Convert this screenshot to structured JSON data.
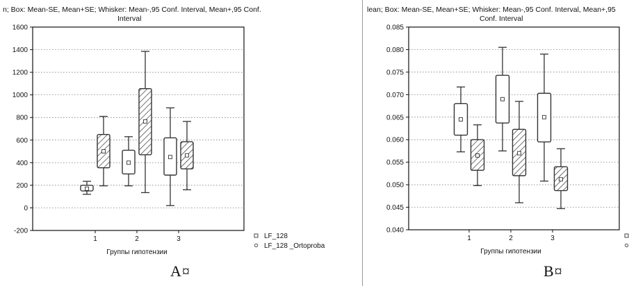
{
  "colors": {
    "axis": "#111111",
    "grid": "#666666",
    "box_stroke": "#333333",
    "hatch": "#333333"
  },
  "chart_data": [
    {
      "type": "box",
      "panel_label": "A¤",
      "header_line1": "n;  Box: Mean-SE, Mean+SE;  Whisker: Mean-,95 Conf. Interval, Mean+,95 Conf.",
      "header_line2": "Interval",
      "xlabel": "Группы гипотензии",
      "categories": [
        "1",
        "2",
        "3"
      ],
      "ylim": [
        -200,
        1600
      ],
      "yticks": [
        "1600",
        "1400",
        "1200",
        "1000",
        "800",
        "600",
        "400",
        "200",
        "0",
        "-200"
      ],
      "grid": true,
      "legend": [
        "LF_128",
        "LF_128  _Ortoproba"
      ],
      "series": [
        {
          "name": "LF_128",
          "hatched": false,
          "mean": [
            170,
            400,
            450
          ],
          "box_low": [
            150,
            300,
            290
          ],
          "box_high": [
            200,
            510,
            620
          ],
          "whisk_low": [
            120,
            195,
            20
          ],
          "whisk_high": [
            235,
            630,
            885
          ]
        },
        {
          "name": "LF_128  _Ortoproba",
          "hatched": true,
          "mean": [
            500,
            765,
            465
          ],
          "box_low": [
            355,
            470,
            345
          ],
          "box_high": [
            650,
            1055,
            585
          ],
          "whisk_low": [
            195,
            135,
            160
          ],
          "whisk_high": [
            810,
            1385,
            765
          ]
        }
      ]
    },
    {
      "type": "box",
      "panel_label": "B¤",
      "header_line1": "lean;  Box: Mean-SE, Mean+SE;  Whisker: Mean-,95 Conf. Interval, Mean+,95",
      "header_line2": "Conf. Interval",
      "xlabel": "Группы гипотензии",
      "categories": [
        "1",
        "2",
        "3"
      ],
      "ylim": [
        0.04,
        0.085
      ],
      "yticks": [
        "0.085",
        "0.080",
        "0.075",
        "0.070",
        "0.065",
        "0.060",
        "0.055",
        "0.050",
        "0.045",
        "0.040"
      ],
      "grid": true,
      "legend": [
        "",
        ""
      ],
      "series": [
        {
          "name": "",
          "hatched": false,
          "mean": [
            0.0645,
            0.069,
            0.065
          ],
          "box_low": [
            0.061,
            0.0637,
            0.0595
          ],
          "box_high": [
            0.068,
            0.0743,
            0.0703
          ],
          "whisk_low": [
            0.0573,
            0.0575,
            0.0508
          ],
          "whisk_high": [
            0.0717,
            0.0805,
            0.079
          ]
        },
        {
          "name": "",
          "hatched": true,
          "mean": [
            0.0565,
            0.057,
            0.0512
          ],
          "box_low": [
            0.0532,
            0.052,
            0.0487
          ],
          "box_high": [
            0.06,
            0.0623,
            0.054
          ],
          "whisk_low": [
            0.0498,
            0.046,
            0.0447
          ],
          "whisk_high": [
            0.0633,
            0.0685,
            0.058
          ]
        }
      ]
    }
  ]
}
